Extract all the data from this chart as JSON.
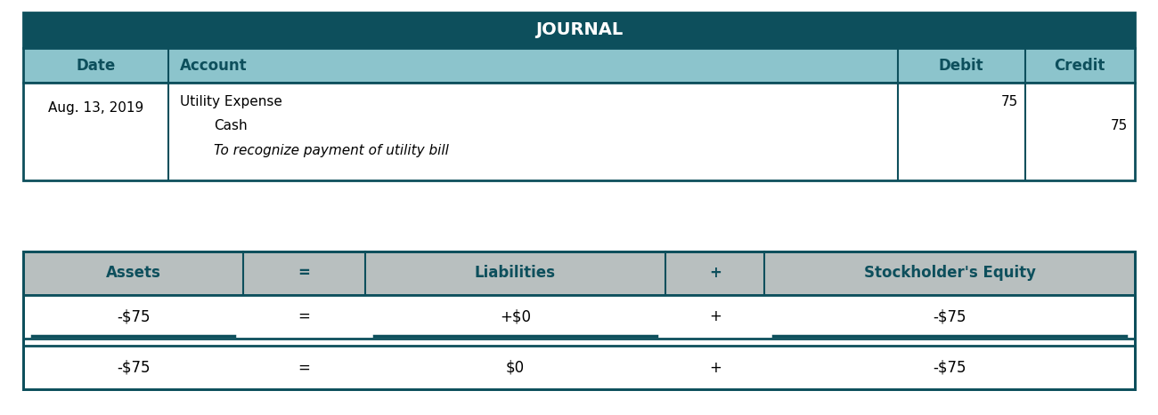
{
  "title": "JOURNAL",
  "title_bg": "#0d4f5c",
  "title_color": "#ffffff",
  "header_bg": "#8cc4cc",
  "header_color": "#0d4f5c",
  "row_bg": "#ffffff",
  "border_color": "#0d4f5c",
  "date": "Aug. 13, 2019",
  "account_line1": "Utility Expense",
  "account_line2": "Cash",
  "account_line3": "To recognize payment of utility bill",
  "debit_value": "75",
  "credit_value": "75",
  "eq_title_bg": "#b8bfbf",
  "eq_header_color": "#0d4f5c",
  "eq_row_bg": "#ffffff",
  "eq_border_color": "#0d4f5c",
  "eq_headers": [
    "Assets",
    "=",
    "Liabilities",
    "+",
    "Stockholder's Equity"
  ],
  "eq_row1": [
    "-$75",
    "=",
    "+$0",
    "+",
    "-$75"
  ],
  "eq_row2": [
    "-$75",
    "=",
    "$0",
    "+",
    "-$75"
  ],
  "fig_width": 13.0,
  "fig_height": 4.67
}
